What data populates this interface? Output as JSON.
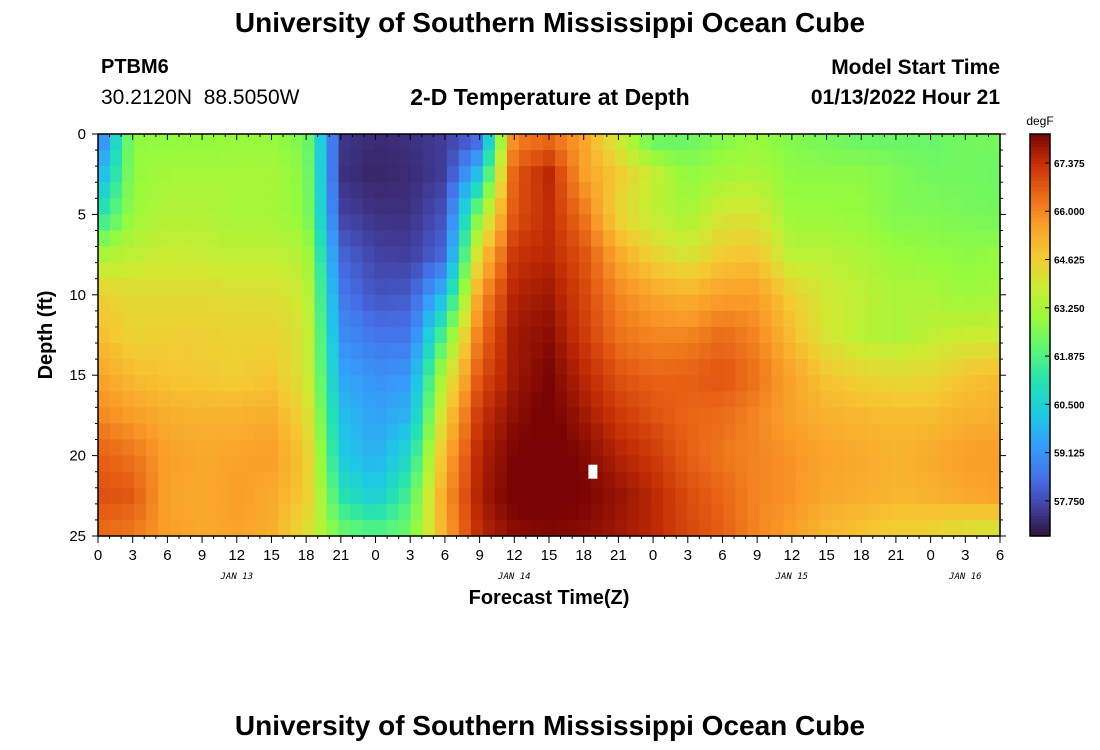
{
  "page": {
    "title": "University of Southern Mississippi Ocean Cube",
    "title_repeat": "University of Southern Mississippi Ocean Cube",
    "station_id": "PTBM6",
    "coordinates": "30.2120N  88.5050W",
    "subtitle": "2-D Temperature at Depth",
    "model_start_label": "Model Start Time",
    "model_start_value": "01/13/2022 Hour 21"
  },
  "chart_data": {
    "type": "heatmap",
    "title": "2-D Temperature at Depth",
    "xlabel": "Forecast Time(Z)",
    "ylabel": "Depth (ft)",
    "x_unit": "hours since 01/13/2022 00Z",
    "xlim": [
      0,
      78
    ],
    "ylim": [
      0,
      25
    ],
    "y_inverted": true,
    "x_ticks": [
      0,
      3,
      6,
      9,
      12,
      15,
      18,
      21,
      24,
      27,
      30,
      33,
      36,
      39,
      42,
      45,
      48,
      51,
      54,
      57,
      60,
      63,
      66,
      69,
      72,
      75,
      78
    ],
    "x_tick_labels": [
      "0",
      "3",
      "6",
      "9",
      "12",
      "15",
      "18",
      "21",
      "0",
      "3",
      "6",
      "9",
      "12",
      "15",
      "18",
      "21",
      "0",
      "3",
      "6",
      "9",
      "12",
      "15",
      "18",
      "21",
      "0",
      "3",
      "6"
    ],
    "date_labels": [
      {
        "x": 12,
        "label": "JAN 13"
      },
      {
        "x": 36,
        "label": "JAN 14"
      },
      {
        "x": 60,
        "label": "JAN 15"
      },
      {
        "x": 75,
        "label": "JAN 16"
      }
    ],
    "y_ticks": [
      0,
      5,
      10,
      15,
      20,
      25
    ],
    "colorbar": {
      "unit": "degF",
      "min": 56.75,
      "max": 68.2,
      "ticks": [
        57.75,
        59.125,
        60.5,
        61.875,
        63.25,
        64.625,
        66.0,
        67.375
      ],
      "tick_labels": [
        "57.750",
        "59.125",
        "60.500",
        "61.875",
        "63.250",
        "64.625",
        "66.000",
        "67.375"
      ]
    },
    "marker": {
      "x": 42.8,
      "depth": 21.0
    },
    "depth_levels": [
      0,
      2.5,
      5,
      7.5,
      10,
      12.5,
      15,
      17.5,
      20,
      22.5,
      25
    ],
    "time_hours": [
      0,
      3,
      6,
      9,
      12,
      15,
      18,
      21,
      24,
      27,
      30,
      33,
      36,
      39,
      42,
      45,
      48,
      51,
      54,
      57,
      60,
      63,
      66,
      69,
      72,
      75,
      78
    ],
    "values": [
      [
        58.2,
        62.8,
        62.8,
        62.8,
        62.9,
        62.9,
        62.5,
        57.4,
        57.2,
        57.3,
        57.5,
        58.0,
        66.0,
        66.3,
        65.5,
        63.7,
        62.0,
        62.2,
        62.6,
        62.9,
        62.6,
        62.4,
        62.2,
        62.2,
        62.2,
        62.4,
        62.5
      ],
      [
        59.5,
        62.9,
        63.2,
        63.2,
        63.2,
        63.2,
        62.7,
        57.3,
        57.1,
        57.2,
        57.5,
        60.2,
        66.7,
        67.5,
        65.6,
        64.7,
        63.7,
        62.8,
        63.2,
        63.3,
        62.8,
        62.8,
        62.8,
        62.6,
        62.4,
        62.4,
        62.3
      ],
      [
        61.0,
        63.0,
        63.4,
        63.4,
        63.2,
        63.2,
        62.8,
        57.6,
        57.3,
        57.3,
        57.9,
        62.8,
        66.8,
        67.4,
        66.3,
        64.4,
        63.6,
        63.2,
        64.0,
        64.0,
        63.0,
        63.0,
        62.9,
        62.6,
        62.6,
        62.5,
        62.4
      ],
      [
        63.2,
        63.6,
        63.8,
        63.7,
        63.6,
        63.6,
        63.4,
        58.2,
        57.6,
        57.5,
        58.3,
        64.5,
        67.3,
        67.5,
        66.8,
        65.4,
        64.5,
        64.0,
        64.7,
        64.8,
        63.5,
        63.5,
        63.3,
        63.0,
        62.9,
        62.8,
        62.9
      ],
      [
        64.6,
        64.3,
        64.3,
        64.3,
        64.2,
        64.2,
        63.8,
        58.6,
        57.9,
        58.0,
        60.0,
        65.7,
        67.6,
        67.8,
        67.0,
        66.0,
        65.5,
        65.2,
        65.6,
        65.6,
        64.6,
        63.9,
        63.6,
        63.3,
        63.3,
        63.0,
        63.2
      ],
      [
        65.0,
        64.5,
        64.6,
        64.6,
        64.5,
        64.5,
        64.0,
        59.0,
        58.5,
        58.5,
        62.0,
        66.3,
        67.8,
        68.0,
        67.2,
        66.3,
        66.0,
        66.0,
        66.4,
        66.0,
        65.0,
        64.0,
        63.5,
        63.3,
        63.6,
        63.8,
        63.8
      ],
      [
        65.5,
        65.0,
        64.8,
        64.7,
        64.6,
        64.8,
        64.0,
        59.5,
        59.0,
        59.2,
        63.6,
        66.8,
        67.8,
        68.2,
        67.5,
        66.8,
        66.5,
        66.6,
        66.8,
        66.3,
        65.5,
        64.8,
        64.5,
        64.3,
        64.4,
        64.8,
        65.0
      ],
      [
        66.0,
        65.6,
        65.3,
        65.2,
        65.2,
        65.3,
        64.4,
        60.0,
        59.4,
        59.8,
        64.5,
        67.3,
        68.0,
        68.3,
        67.8,
        67.2,
        66.8,
        66.5,
        66.4,
        66.0,
        65.5,
        65.2,
        65.1,
        65.0,
        65.0,
        65.2,
        65.3
      ],
      [
        66.6,
        66.3,
        65.6,
        65.4,
        65.5,
        65.6,
        64.8,
        60.3,
        59.6,
        60.8,
        65.2,
        67.6,
        68.2,
        68.4,
        68.1,
        67.6,
        67.2,
        66.6,
        66.2,
        66.0,
        65.8,
        65.5,
        65.4,
        65.2,
        65.4,
        65.6,
        65.6
      ],
      [
        66.8,
        66.7,
        65.5,
        65.4,
        65.6,
        65.4,
        64.7,
        61.2,
        60.4,
        61.8,
        65.6,
        67.7,
        68.3,
        68.4,
        68.2,
        67.9,
        67.5,
        66.9,
        66.5,
        66.0,
        65.8,
        65.4,
        65.3,
        65.1,
        65.2,
        65.4,
        65.5
      ],
      [
        66.4,
        66.2,
        65.6,
        65.4,
        65.5,
        65.3,
        64.2,
        62.4,
        62.0,
        62.4,
        65.4,
        67.5,
        68.0,
        68.1,
        68.0,
        67.8,
        67.5,
        67.0,
        66.6,
        66.0,
        65.6,
        65.1,
        64.8,
        64.5,
        64.4,
        64.0,
        63.8
      ]
    ]
  }
}
